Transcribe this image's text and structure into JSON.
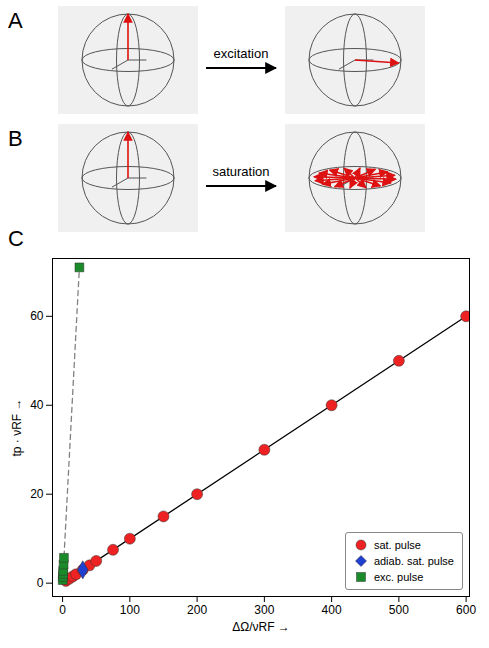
{
  "panels": [
    {
      "letter": "A",
      "label": "excitation"
    },
    {
      "letter": "B",
      "label": "saturation"
    },
    {
      "letter": "C"
    }
  ],
  "chart_data": {
    "type": "scatter",
    "x_label": "ΔΩ/νRF →",
    "y_label": "tp · νRF →",
    "xlim": [
      -15,
      605
    ],
    "ylim": [
      -3,
      73
    ],
    "xticks": [
      0,
      100,
      200,
      300,
      400,
      500,
      600
    ],
    "yticks": [
      0,
      20,
      40,
      60
    ],
    "grid": false,
    "legend": "bottom-right",
    "series": [
      {
        "name": null,
        "type": "line",
        "color": "#000000",
        "line_style": "solid",
        "x": [
          0,
          600
        ],
        "values": [
          0,
          60
        ]
      },
      {
        "name": null,
        "type": "line",
        "color": "#808080",
        "line_style": "dashed",
        "x": [
          0,
          25
        ],
        "values": [
          0,
          71
        ]
      },
      {
        "name": "sat. pulse",
        "type": "scatter",
        "color": "#ee2222",
        "marker": "circle",
        "x": [
          5,
          10,
          15,
          20,
          30,
          40,
          50,
          75,
          100,
          150,
          200,
          300,
          400,
          500,
          600
        ],
        "values": [
          0.5,
          1,
          1.5,
          2,
          3,
          4,
          5,
          7.5,
          10,
          15,
          20,
          30,
          40,
          50,
          60
        ]
      },
      {
        "name": "adiab. sat. pulse",
        "type": "scatter",
        "color": "#1f3fd0",
        "marker": "diamond",
        "x": [
          30
        ],
        "values": [
          3
        ]
      },
      {
        "name": "exc. pulse",
        "type": "scatter",
        "color": "#1a8a2a",
        "marker": "square",
        "x": [
          0.25,
          0.5,
          0.75,
          1,
          1.5,
          2,
          25
        ],
        "values": [
          0.7,
          1.4,
          2.1,
          2.8,
          4.2,
          5.7,
          71
        ]
      }
    ]
  }
}
